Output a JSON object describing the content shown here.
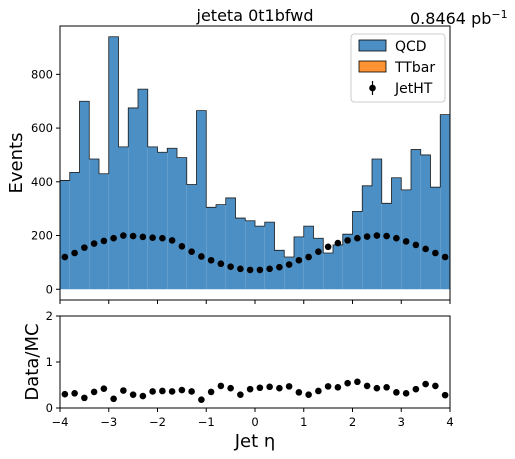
{
  "title": "jeteta  0t1bfwd",
  "lumi_label": "0.8464 pb",
  "lumi_exp": "−1",
  "chart_data": [
    {
      "type": "bar",
      "panel": "main",
      "ylabel": "Events",
      "xlim": [
        -4,
        4
      ],
      "ylim": [
        -40,
        980
      ],
      "yticks": [
        0,
        200,
        400,
        600,
        800
      ],
      "x_edges": [
        -4.0,
        -3.8,
        -3.6,
        -3.4,
        -3.2,
        -3.0,
        -2.8,
        -2.6,
        -2.4,
        -2.2,
        -2.0,
        -1.8,
        -1.6,
        -1.4,
        -1.2,
        -1.0,
        -0.8,
        -0.6,
        -0.4,
        -0.2,
        0.0,
        0.2,
        0.4,
        0.6,
        0.8,
        1.0,
        1.2,
        1.4,
        1.6,
        1.8,
        2.0,
        2.2,
        2.4,
        2.6,
        2.8,
        3.0,
        3.2,
        3.4,
        3.6,
        3.8,
        4.0
      ],
      "series": [
        {
          "name": "QCD",
          "style": "stacked-histogram",
          "color": "#4c8fc4",
          "values": [
            405,
            435,
            700,
            485,
            430,
            940,
            530,
            675,
            745,
            530,
            510,
            525,
            490,
            390,
            665,
            305,
            315,
            340,
            265,
            255,
            235,
            250,
            145,
            120,
            195,
            235,
            190,
            135,
            165,
            205,
            290,
            385,
            485,
            320,
            415,
            370,
            520,
            500,
            380,
            650
          ]
        },
        {
          "name": "TTbar",
          "style": "stacked-histogram",
          "color": "#ff9233",
          "values": []
        },
        {
          "name": "JetHT",
          "style": "points",
          "color": "#000000",
          "x": [
            -3.9,
            -3.7,
            -3.5,
            -3.3,
            -3.1,
            -2.9,
            -2.7,
            -2.5,
            -2.3,
            -2.1,
            -1.9,
            -1.7,
            -1.5,
            -1.3,
            -1.1,
            -0.9,
            -0.7,
            -0.5,
            -0.3,
            -0.1,
            0.1,
            0.3,
            0.5,
            0.7,
            0.9,
            1.1,
            1.3,
            1.5,
            1.7,
            1.9,
            2.1,
            2.3,
            2.5,
            2.7,
            2.9,
            3.1,
            3.3,
            3.5,
            3.7,
            3.9
          ],
          "values": [
            120,
            135,
            155,
            170,
            180,
            190,
            200,
            198,
            195,
            192,
            190,
            182,
            160,
            140,
            122,
            108,
            95,
            84,
            76,
            72,
            72,
            76,
            82,
            92,
            108,
            120,
            140,
            158,
            172,
            182,
            190,
            196,
            200,
            198,
            190,
            178,
            165,
            150,
            135,
            120
          ]
        }
      ]
    },
    {
      "type": "scatter",
      "panel": "ratio",
      "xlabel": "Jet η",
      "ylabel": "Data/MC",
      "xlim": [
        -4,
        4
      ],
      "ylim": [
        0,
        2
      ],
      "yticks": [
        0,
        1,
        2
      ],
      "xticks": [
        -4,
        -3,
        -2,
        -1,
        0,
        1,
        2,
        3,
        4
      ],
      "xtick_labels": [
        "−4",
        "−3",
        "−2",
        "−1",
        "0",
        "1",
        "2",
        "3",
        "4"
      ],
      "x": [
        -3.9,
        -3.7,
        -3.5,
        -3.3,
        -3.1,
        -2.9,
        -2.7,
        -2.5,
        -2.3,
        -2.1,
        -1.9,
        -1.7,
        -1.5,
        -1.3,
        -1.1,
        -0.9,
        -0.7,
        -0.5,
        -0.3,
        -0.1,
        0.1,
        0.3,
        0.5,
        0.7,
        0.9,
        1.1,
        1.3,
        1.5,
        1.7,
        1.9,
        2.1,
        2.3,
        2.5,
        2.7,
        2.9,
        3.1,
        3.3,
        3.5,
        3.7,
        3.9
      ],
      "values": [
        0.3,
        0.32,
        0.22,
        0.35,
        0.42,
        0.2,
        0.38,
        0.29,
        0.26,
        0.36,
        0.37,
        0.36,
        0.39,
        0.36,
        0.18,
        0.35,
        0.48,
        0.43,
        0.29,
        0.41,
        0.44,
        0.46,
        0.43,
        0.47,
        0.34,
        0.29,
        0.37,
        0.47,
        0.45,
        0.54,
        0.57,
        0.48,
        0.43,
        0.45,
        0.34,
        0.32,
        0.41,
        0.52,
        0.48,
        0.28
      ]
    }
  ]
}
